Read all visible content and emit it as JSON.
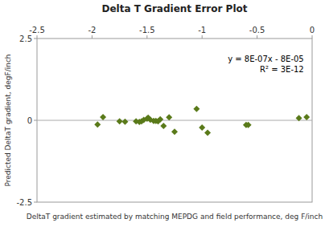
{
  "chart_data": {
    "type": "scatter",
    "title": "Delta T Gradient Error Plot",
    "x_label": "DeltaT gradient estimated by matching MEPDG and field performance, deg F/inch",
    "y_label": "Predicted DeltaT gradient, degF/inch",
    "annotation": "y = 8E-07x - 8E-05\nR² = 3E-12",
    "x": [
      -1.95,
      -1.9,
      -1.75,
      -1.7,
      -1.6,
      -1.57,
      -1.55,
      -1.53,
      -1.5,
      -1.49,
      -1.47,
      -1.44,
      -1.42,
      -1.4,
      -1.38,
      -1.35,
      -1.3,
      -1.25,
      -1.05,
      -1.0,
      -0.95,
      -0.6,
      -0.58,
      -0.12,
      -0.05
    ],
    "values": [
      -0.13,
      0.1,
      -0.03,
      -0.04,
      -0.03,
      -0.05,
      -0.03,
      0.01,
      0.05,
      0.08,
      0.02,
      -0.02,
      -0.02,
      -0.03,
      0.03,
      -0.17,
      0.09,
      -0.35,
      0.35,
      -0.22,
      -0.38,
      -0.14,
      -0.14,
      0.07,
      0.1
    ],
    "color": "#5a7a1a",
    "marker": "diamond",
    "hline": 0,
    "xlim": [
      -2.5,
      0
    ],
    "ylim": [
      -2.5,
      2.5
    ],
    "xticks": [
      -2.5,
      -2,
      -1.5,
      -1,
      -0.5,
      0
    ],
    "yticks": [
      -2.5,
      0,
      2.5
    ],
    "grid": false
  }
}
